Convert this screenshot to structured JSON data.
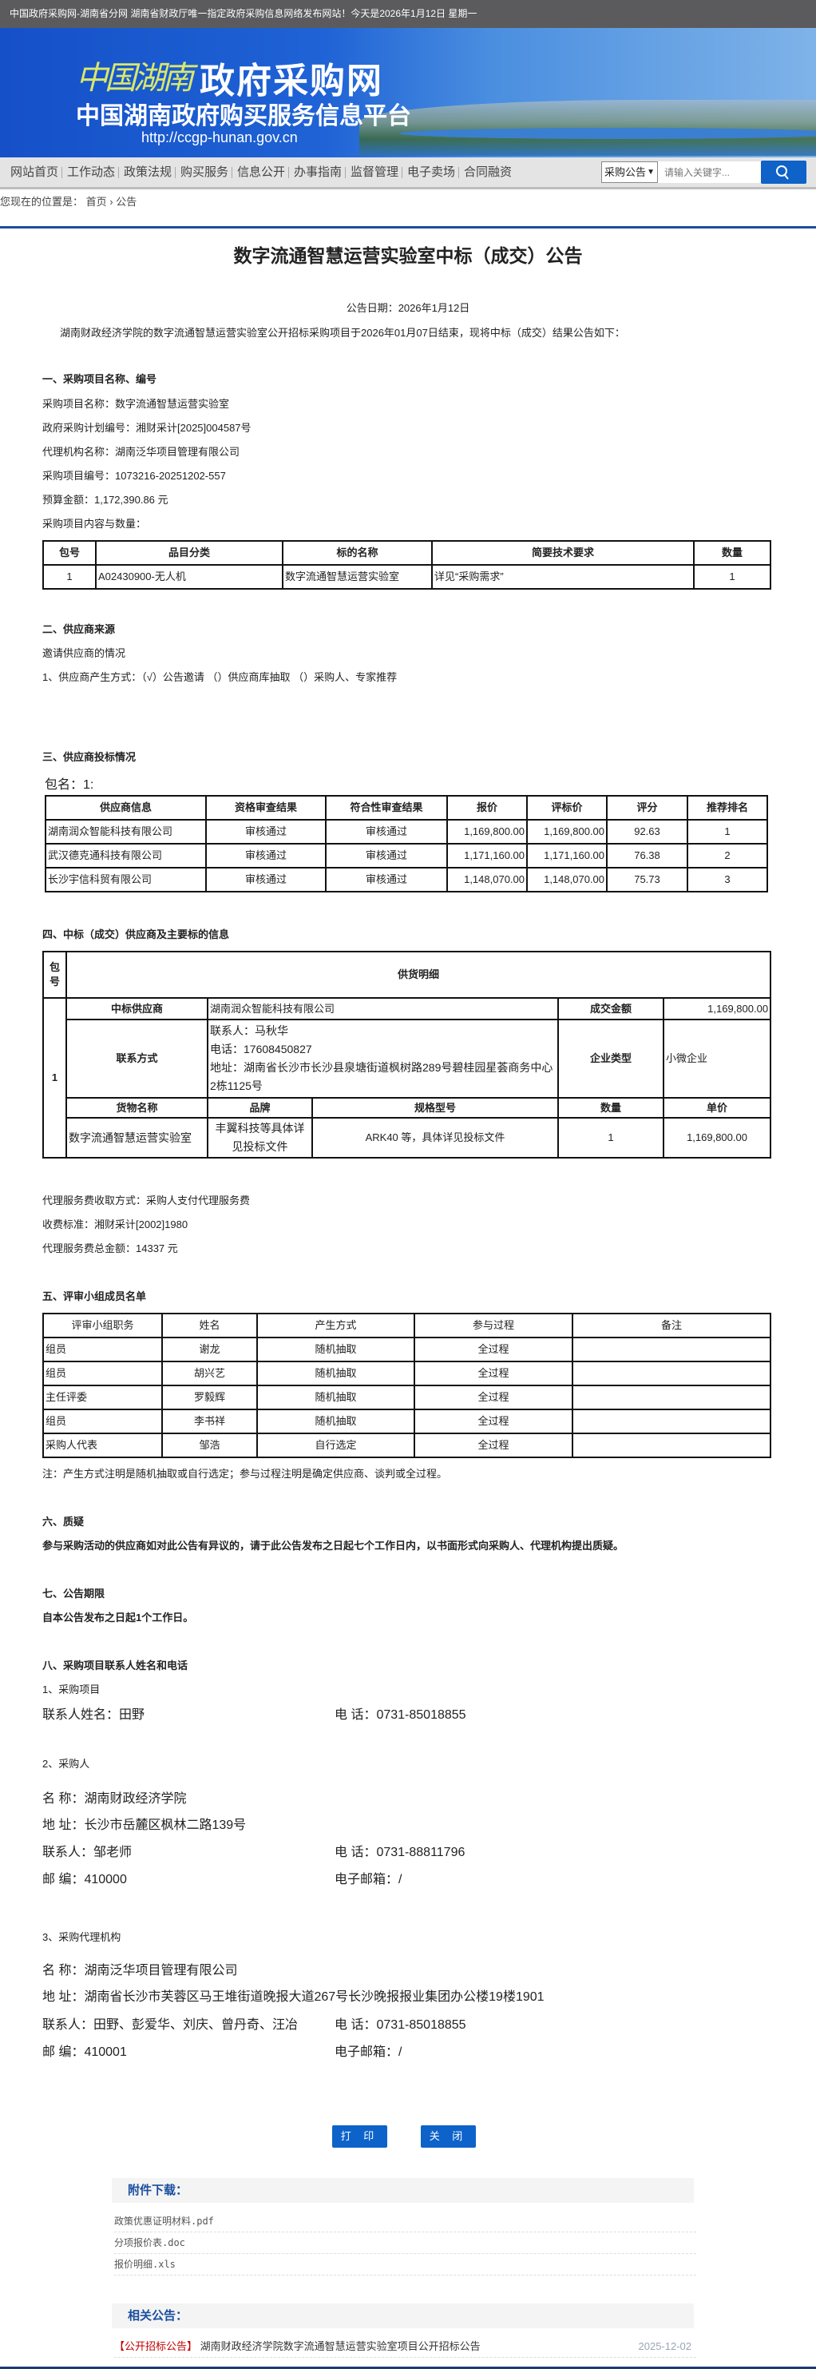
{
  "topbar": {
    "text": "中国政府采购网-湖南省分网  湖南省财政厅唯一指定政府采购信息网络发布网站！今天是2026年1月12日  星期一"
  },
  "banner": {
    "logo_calligraphy": "中国湖南",
    "logo_main": "政府采购网",
    "subtitle": "中国湖南政府购买服务信息平台",
    "url": "http://ccgp-hunan.gov.cn"
  },
  "nav": {
    "items": [
      "网站首页",
      "工作动态",
      "政策法规",
      "购买服务",
      "信息公开",
      "办事指南",
      "监督管理",
      "电子卖场",
      "合同融资"
    ]
  },
  "search": {
    "select_value": "采购公告",
    "placeholder": "请输入关键字...",
    "icon": "search-icon"
  },
  "breadcrumb": {
    "label": "您现在的位置是：",
    "home": "首页",
    "sep": "›",
    "current": "公告"
  },
  "title": "数字流通智慧运营实验室中标（成交）公告",
  "date": "公告日期：2026年1月12日",
  "intro": "湖南财政经济学院的数字流通智慧运营实验室公开招标采购项目于2026年01月07日结束，现将中标（成交）结果公告如下：",
  "s1": {
    "heading": "一、采购项目名称、编号",
    "lines": [
      "采购项目名称：数字流通智慧运营实验室",
      "政府采购计划编号：湘财采计[2025]004587号",
      "代理机构名称：湖南泛华项目管理有限公司",
      "采购项目编号：1073216-20251202-557",
      "预算金额：1,172,390.86 元",
      "采购项目内容与数量："
    ],
    "table": {
      "headers": [
        "包号",
        "品目分类",
        "标的名称",
        "简要技术要求",
        "数量"
      ],
      "rows": [
        [
          "1",
          "A02430900-无人机",
          "数字流通智慧运营实验室",
          "详见“采购需求”",
          "1"
        ]
      ]
    }
  },
  "s2": {
    "heading": "二、供应商来源",
    "lines": [
      "邀请供应商的情况",
      "1、供应商产生方式：（√）公告邀请 （）供应商库抽取 （）采购人、专家推荐"
    ]
  },
  "s3": {
    "heading": "三、供应商投标情况",
    "package": "包名：1:",
    "table": {
      "headers": [
        "供应商信息",
        "资格审查结果",
        "符合性审查结果",
        "报价",
        "评标价",
        "评分",
        "推荐排名"
      ],
      "rows": [
        [
          "湖南润众智能科技有限公司",
          "审核通过",
          "审核通过",
          "1,169,800.00",
          "1,169,800.00",
          "92.63",
          "1"
        ],
        [
          "武汉德克通科技有限公司",
          "审核通过",
          "审核通过",
          "1,171,160.00",
          "1,171,160.00",
          "76.38",
          "2"
        ],
        [
          "长沙宇信科贸有限公司",
          "审核通过",
          "审核通过",
          "1,148,070.00",
          "1,148,070.00",
          "75.73",
          "3"
        ]
      ]
    }
  },
  "s4": {
    "heading": "四、中标（成交）供应商及主要标的信息",
    "pkg_header": "包号",
    "detail_header": "供货明细",
    "pkg_no": "1",
    "winner_label": "中标供应商",
    "winner": "湖南润众智能科技有限公司",
    "amount_label": "成交金额",
    "amount": "1,169,800.00",
    "contact_label": "联系方式",
    "contact_lines": [
      "联系人：马秋华",
      "电话：17608450827",
      "地址：湖南省长沙市长沙县泉塘街道枫树路289号碧桂园星荟商务中心2栋1125号"
    ],
    "type_label": "企业类型",
    "type": "小微企业",
    "goods_headers": [
      "货物名称",
      "品牌",
      "规格型号",
      "数量",
      "单价"
    ],
    "goods": [
      "数字流通智慧运营实验室",
      "丰翼科技等具体详见投标文件",
      "ARK40 等，具体详见投标文件",
      "1",
      "1,169,800.00"
    ],
    "fee_lines": [
      "代理服务费收取方式：采购人支付代理服务费",
      "收费标准：湘财采计[2002]1980",
      "代理服务费总金额：14337 元"
    ]
  },
  "s5": {
    "heading": "五、评审小组成员名单",
    "table": {
      "headers": [
        "评审小组职务",
        "姓名",
        "产生方式",
        "参与过程",
        "备注"
      ],
      "rows": [
        [
          "组员",
          "谢龙",
          "随机抽取",
          "全过程",
          ""
        ],
        [
          "组员",
          "胡兴艺",
          "随机抽取",
          "全过程",
          ""
        ],
        [
          "主任评委",
          "罗毅辉",
          "随机抽取",
          "全过程",
          ""
        ],
        [
          "组员",
          "李书祥",
          "随机抽取",
          "全过程",
          ""
        ],
        [
          "采购人代表",
          "邹浩",
          "自行选定",
          "全过程",
          ""
        ]
      ]
    },
    "note": "注：产生方式注明是随机抽取或自行选定；参与过程注明是确定供应商、谈判或全过程。"
  },
  "s6": {
    "heading": "六、质疑",
    "text": "参与采购活动的供应商如对此公告有异议的，请于此公告发布之日起七个工作日内，以书面形式向采购人、代理机构提出质疑。"
  },
  "s7": {
    "heading": "七、公告期限",
    "text": "自本公告发布之日起1个工作日。"
  },
  "s8": {
    "heading": "八、采购项目联系人姓名和电话",
    "p1": {
      "label": "1、采购项目",
      "name": "联系人姓名：田野",
      "phone": "电 话：0731-85018855"
    },
    "p2": {
      "label": "2、采购人",
      "name": "名 称：湖南财政经济学院",
      "addr": "地 址：长沙市岳麓区枫林二路139号",
      "contact": "联系人：邹老师",
      "phone": "电 话：0731-88811796",
      "zip": "邮 编：410000",
      "email": "电子邮箱：/"
    },
    "p3": {
      "label": "3、采购代理机构",
      "name": "名 称：湖南泛华项目管理有限公司",
      "addr": "地 址：湖南省长沙市芙蓉区马王堆街道晚报大道267号长沙晚报报业集团办公楼19楼1901",
      "contact": "联系人：田野、彭爱华、刘庆、曾丹奇、汪冶",
      "phone": "电 话：0731-85018855",
      "zip": "邮 编：410001",
      "email": "电子邮箱：/"
    }
  },
  "buttons": {
    "print": "打 印",
    "close": "关 闭"
  },
  "attachments": {
    "heading": "附件下载：",
    "files": [
      "政策优惠证明材料.pdf",
      "分项报价表.doc",
      "报价明细.xls"
    ]
  },
  "related": {
    "heading": "相关公告：",
    "items": [
      {
        "tag": "【公开招标公告】",
        "title": "湖南财政经济学院数字流通智慧运营实验室项目公开招标公告",
        "date": "2025-12-02"
      }
    ]
  },
  "colors": {
    "brand_blue": "#0d63c9",
    "nav_bg": "#e4e4e4",
    "topbar": "#5b5b5d",
    "tag_red": "#c00000"
  }
}
